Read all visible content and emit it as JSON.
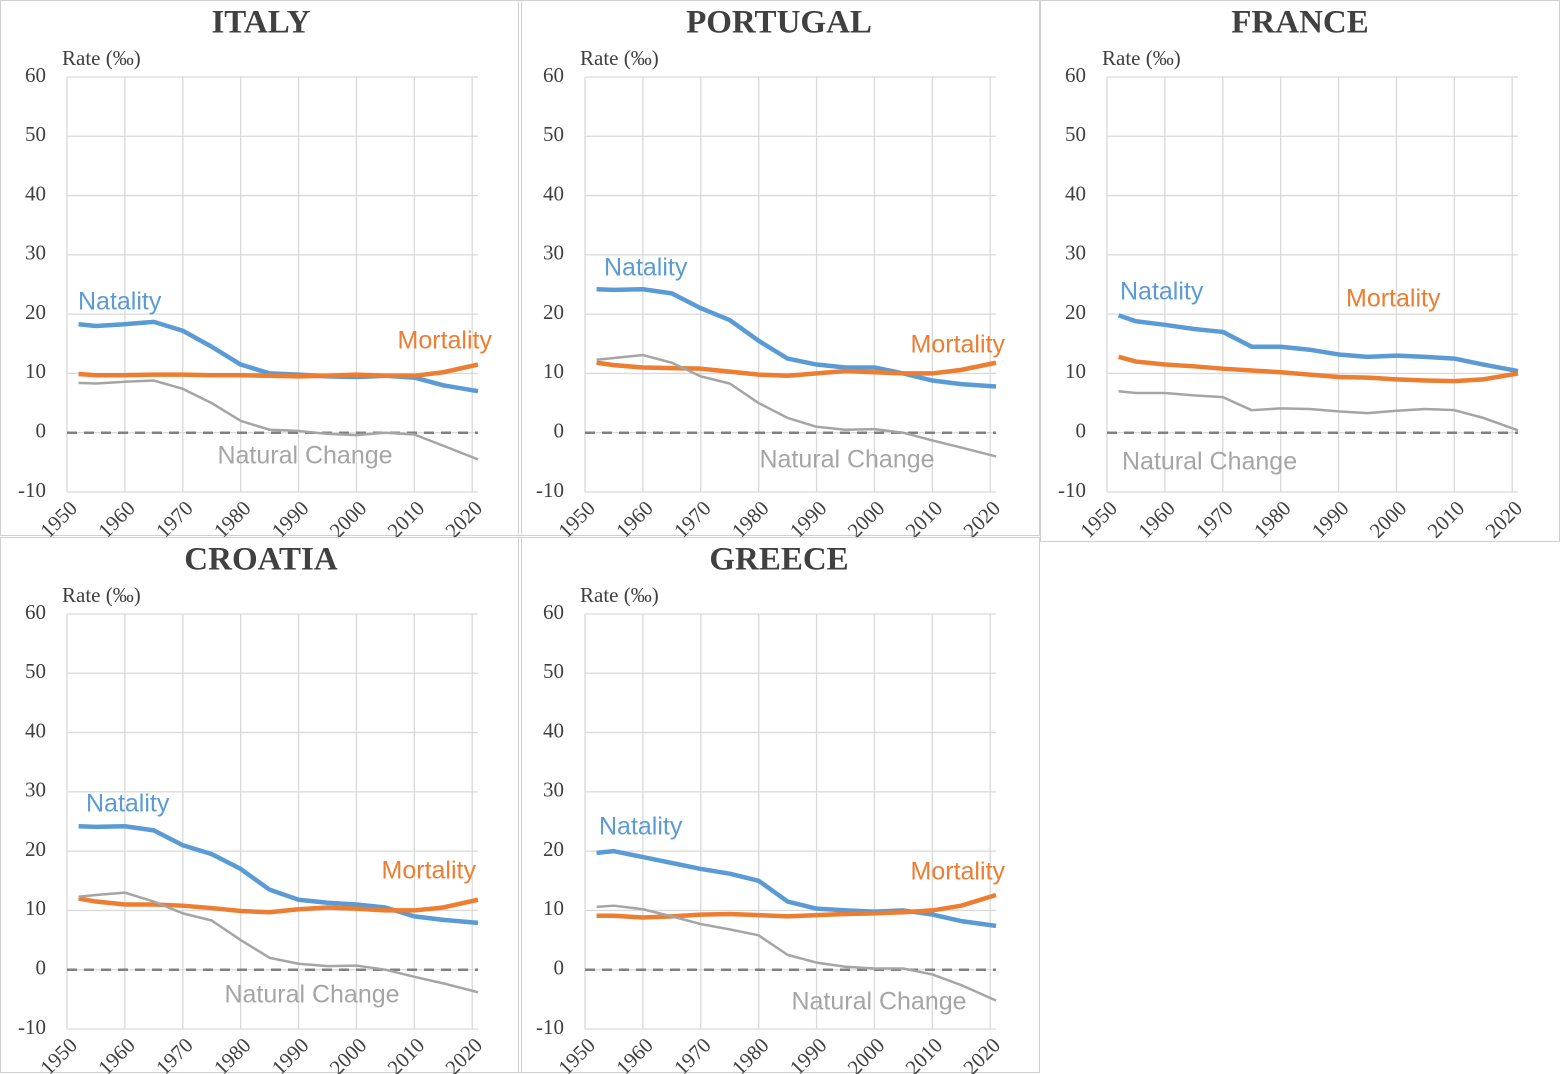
{
  "chart_data": [
    {
      "type": "line",
      "title": "ITALY",
      "y_label": "Rate (‰)",
      "x": [
        1952,
        1955,
        1960,
        1965,
        1970,
        1975,
        1980,
        1985,
        1990,
        1995,
        2000,
        2005,
        2010,
        2015,
        2021
      ],
      "xlim": [
        1950,
        2021
      ],
      "xticks": [
        1950,
        1960,
        1970,
        1980,
        1990,
        2000,
        2010,
        2020
      ],
      "ylim": [
        -10,
        60
      ],
      "yticks": [
        -10,
        0,
        10,
        20,
        30,
        40,
        50,
        60
      ],
      "grid": true,
      "series": [
        {
          "name": "Natality",
          "color": "#5b9bd5",
          "values": [
            18.3,
            18.0,
            18.3,
            18.7,
            17.2,
            14.5,
            11.5,
            10.0,
            9.8,
            9.5,
            9.4,
            9.6,
            9.3,
            8.0,
            7.0
          ]
        },
        {
          "name": "Mortality",
          "color": "#ed7d31",
          "values": [
            9.9,
            9.7,
            9.7,
            9.8,
            9.8,
            9.7,
            9.7,
            9.6,
            9.5,
            9.6,
            9.8,
            9.6,
            9.6,
            10.2,
            11.5
          ]
        },
        {
          "name": "Natural Change",
          "color": "#a5a5a5",
          "values": [
            8.4,
            8.3,
            8.6,
            8.8,
            7.4,
            5.0,
            2.0,
            0.5,
            0.3,
            -0.2,
            -0.4,
            0,
            -0.3,
            -2.2,
            -4.5
          ]
        }
      ]
    },
    {
      "type": "line",
      "title": "PORTUGAL",
      "y_label": "Rate (‰)",
      "x": [
        1952,
        1955,
        1960,
        1965,
        1970,
        1975,
        1980,
        1985,
        1990,
        1995,
        2000,
        2005,
        2010,
        2015,
        2021
      ],
      "xlim": [
        1950,
        2021
      ],
      "xticks": [
        1950,
        1960,
        1970,
        1980,
        1990,
        2000,
        2010,
        2020
      ],
      "ylim": [
        -10,
        60
      ],
      "yticks": [
        -10,
        0,
        10,
        20,
        30,
        40,
        50,
        60
      ],
      "grid": true,
      "series": [
        {
          "name": "Natality",
          "color": "#5b9bd5",
          "values": [
            24.2,
            24.1,
            24.2,
            23.5,
            21.0,
            19.0,
            15.5,
            12.5,
            11.5,
            11.0,
            11.0,
            10.0,
            8.8,
            8.2,
            7.8
          ]
        },
        {
          "name": "Mortality",
          "color": "#ed7d31",
          "values": [
            11.8,
            11.4,
            11.0,
            10.9,
            10.8,
            10.3,
            9.8,
            9.6,
            10.0,
            10.4,
            10.2,
            10.0,
            10.0,
            10.6,
            11.8
          ]
        },
        {
          "name": "Natural Change",
          "color": "#a5a5a5",
          "values": [
            12.3,
            12.6,
            13.1,
            11.8,
            9.5,
            8.3,
            5.0,
            2.5,
            1.0,
            0.5,
            0.6,
            0,
            -1.3,
            -2.5,
            -4.0
          ]
        }
      ]
    },
    {
      "type": "line",
      "title": "FRANCE",
      "y_label": "Rate (‰)",
      "x": [
        1952,
        1955,
        1960,
        1965,
        1970,
        1975,
        1980,
        1985,
        1990,
        1995,
        2000,
        2005,
        2010,
        2015,
        2021
      ],
      "xlim": [
        1950,
        2021
      ],
      "xticks": [
        1950,
        1960,
        1970,
        1980,
        1990,
        2000,
        2010,
        2020
      ],
      "ylim": [
        -10,
        60
      ],
      "yticks": [
        -10,
        0,
        10,
        20,
        30,
        40,
        50,
        60
      ],
      "grid": true,
      "series": [
        {
          "name": "Natality",
          "color": "#5b9bd5",
          "values": [
            19.8,
            18.8,
            18.2,
            17.5,
            17.0,
            14.5,
            14.5,
            14.0,
            13.2,
            12.8,
            13.0,
            12.8,
            12.5,
            11.5,
            10.4
          ]
        },
        {
          "name": "Mortality",
          "color": "#ed7d31",
          "values": [
            12.8,
            12.0,
            11.5,
            11.2,
            10.8,
            10.5,
            10.2,
            9.8,
            9.4,
            9.3,
            9.0,
            8.8,
            8.7,
            9.0,
            10.0
          ]
        },
        {
          "name": "Natural Change",
          "color": "#a5a5a5",
          "values": [
            7.0,
            6.7,
            6.7,
            6.3,
            6.0,
            3.8,
            4.1,
            4.0,
            3.6,
            3.3,
            3.7,
            4.0,
            3.8,
            2.5,
            0.4
          ]
        }
      ]
    },
    {
      "type": "line",
      "title": "CROATIA",
      "y_label": "Rate (‰)",
      "x": [
        1952,
        1955,
        1960,
        1965,
        1970,
        1975,
        1980,
        1985,
        1990,
        1995,
        2000,
        2005,
        2010,
        2015,
        2021
      ],
      "xlim": [
        1950,
        2021
      ],
      "xticks": [
        1950,
        1960,
        1970,
        1980,
        1990,
        2000,
        2010,
        2020
      ],
      "ylim": [
        -10,
        60
      ],
      "yticks": [
        -10,
        0,
        10,
        20,
        30,
        40,
        50,
        60
      ],
      "grid": true,
      "series": [
        {
          "name": "Natality",
          "color": "#5b9bd5",
          "values": [
            24.2,
            24.1,
            24.2,
            23.5,
            21.0,
            19.5,
            17.0,
            13.5,
            11.8,
            11.3,
            11.0,
            10.5,
            9.0,
            8.4,
            7.9
          ]
        },
        {
          "name": "Mortality",
          "color": "#ed7d31",
          "values": [
            12.0,
            11.5,
            11.0,
            11.0,
            10.8,
            10.4,
            9.9,
            9.7,
            10.2,
            10.5,
            10.3,
            10.0,
            10.0,
            10.5,
            11.8
          ]
        },
        {
          "name": "Natural Change",
          "color": "#a5a5a5",
          "values": [
            12.3,
            12.6,
            13.0,
            11.5,
            9.5,
            8.3,
            5.0,
            2.0,
            1.0,
            0.6,
            0.7,
            0,
            -1.2,
            -2.3,
            -3.8
          ]
        }
      ]
    },
    {
      "type": "line",
      "title": "GREECE",
      "y_label": "Rate (‰)",
      "x": [
        1952,
        1955,
        1960,
        1965,
        1970,
        1975,
        1980,
        1985,
        1990,
        1995,
        2000,
        2005,
        2010,
        2015,
        2021
      ],
      "xlim": [
        1950,
        2021
      ],
      "xticks": [
        1950,
        1960,
        1970,
        1980,
        1990,
        2000,
        2010,
        2020
      ],
      "ylim": [
        -10,
        60
      ],
      "yticks": [
        -10,
        0,
        10,
        20,
        30,
        40,
        50,
        60
      ],
      "grid": true,
      "series": [
        {
          "name": "Natality",
          "color": "#5b9bd5",
          "values": [
            19.7,
            20.0,
            19.0,
            18.0,
            17.0,
            16.2,
            15.0,
            11.5,
            10.3,
            10.0,
            9.8,
            10.0,
            9.3,
            8.2,
            7.4
          ]
        },
        {
          "name": "Mortality",
          "color": "#ed7d31",
          "values": [
            9.1,
            9.1,
            8.8,
            9.0,
            9.3,
            9.4,
            9.2,
            9.0,
            9.2,
            9.4,
            9.5,
            9.7,
            10.0,
            10.8,
            12.6
          ]
        },
        {
          "name": "Natural Change",
          "color": "#a5a5a5",
          "values": [
            10.6,
            10.8,
            10.2,
            9.0,
            7.7,
            6.8,
            5.8,
            2.5,
            1.2,
            0.5,
            0.2,
            0.2,
            -0.8,
            -2.6,
            -5.2
          ]
        }
      ]
    }
  ]
}
